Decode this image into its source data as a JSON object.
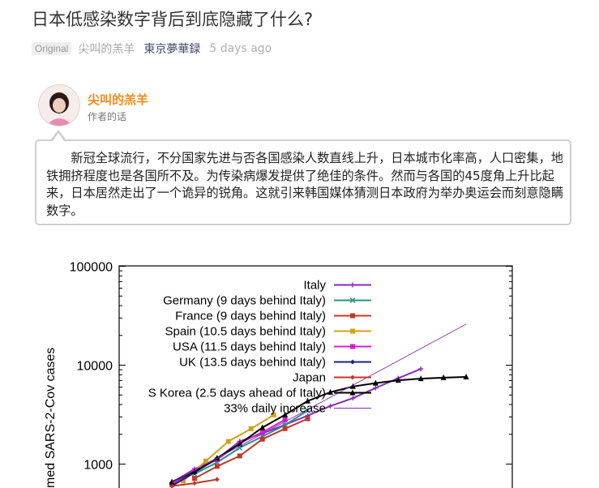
{
  "article": {
    "title": "日本低感染数字背后到底隐藏了什么?",
    "badge": "Original",
    "author": "尖叫的羔羊",
    "source": "東京夢華録",
    "time": "5 days ago"
  },
  "author_box": {
    "name": "尖叫的羔羊",
    "note_label": "作者的话",
    "note": "新冠全球流行，不分国家先进与否各国感染人数直线上升，日本城市化率高，人口密集，地铁拥挤程度也是各国所不及。为传染病爆发提供了绝佳的条件。然而与各国的45度角上升比起来，日本居然走出了一个诡异的锐角。这就引来韩国媒体猜测日本政府为举办奥运会而刻意隐瞒数字。"
  },
  "colors": {
    "author_name": "#f08c1c",
    "source_link": "#3d4b66"
  },
  "chart_data": {
    "type": "line",
    "ylabel": "med SARS-2-Cov cases",
    "yscale": "log",
    "yticks": [
      "100000",
      "10000",
      "1000"
    ],
    "ylim_visible": [
      600,
      100000
    ],
    "x_day_range": [
      0,
      14
    ],
    "legend_position": "top-right",
    "series": [
      {
        "name": "Italy",
        "color": "#8a2bb5",
        "marker": "plus",
        "points": [
          [
            0,
            650
          ],
          [
            1,
            890
          ],
          [
            2,
            1130
          ],
          [
            3,
            1700
          ],
          [
            4,
            2040
          ],
          [
            5,
            2500
          ],
          [
            6,
            3090
          ],
          [
            7,
            3860
          ],
          [
            8,
            4640
          ],
          [
            9,
            5880
          ],
          [
            10,
            7380
          ],
          [
            11,
            9170
          ]
        ]
      },
      {
        "name": "Germany (9 days behind Italy)",
        "color": "#2a8f8f",
        "marker": "x",
        "points": [
          [
            1,
            795
          ],
          [
            2,
            1040
          ],
          [
            3,
            1460
          ],
          [
            4,
            1900
          ],
          [
            5,
            2480
          ],
          [
            6,
            3480
          ]
        ]
      },
      {
        "name": "France (9 days behind Italy)",
        "color": "#c0392b",
        "marker": "square",
        "points": [
          [
            1,
            716
          ],
          [
            2,
            949
          ],
          [
            3,
            1209
          ],
          [
            4,
            1784
          ],
          [
            5,
            2281
          ],
          [
            6,
            2876
          ]
        ]
      },
      {
        "name": "Spain (10.5 days behind Italy)",
        "color": "#d4a017",
        "marker": "square",
        "points": [
          [
            0.5,
            674
          ],
          [
            1.5,
            1073
          ],
          [
            2.5,
            1695
          ],
          [
            3.5,
            2277
          ],
          [
            4.5,
            3146
          ]
        ]
      },
      {
        "name": "USA (11.5 days behind Italy)",
        "color": "#d21fd2",
        "marker": "square",
        "points": [
          [
            0,
            620
          ],
          [
            1,
            860
          ],
          [
            2,
            1110
          ],
          [
            3,
            1630
          ],
          [
            4,
            2100
          ],
          [
            5,
            2810
          ]
        ]
      },
      {
        "name": "UK (13.5 days behind Italy)",
        "color": "#1a237e",
        "marker": "diamond",
        "points": [
          [
            0,
            600
          ],
          [
            1,
            820
          ],
          [
            2,
            1140
          ]
        ]
      },
      {
        "name": "Japan",
        "color": "#c0392b",
        "marker": "diamond",
        "points": [
          [
            0,
            600
          ],
          [
            1,
            640
          ],
          [
            2,
            700
          ]
        ]
      },
      {
        "name": "S Korea (2.5 days ahead of Italy)",
        "color": "#000000",
        "marker": "triangle",
        "points": [
          [
            0,
            660
          ],
          [
            1,
            840
          ],
          [
            2,
            1150
          ],
          [
            3,
            1600
          ],
          [
            4,
            2340
          ],
          [
            5,
            3150
          ],
          [
            6,
            4340
          ],
          [
            7,
            5330
          ],
          [
            8,
            6090
          ],
          [
            9,
            6590
          ],
          [
            10,
            7040
          ],
          [
            11,
            7310
          ],
          [
            12,
            7480
          ],
          [
            13,
            7600
          ]
        ]
      },
      {
        "name": "33% daily increase",
        "color": "#8a2bb5",
        "marker": "none",
        "points": [
          [
            0,
            650
          ],
          [
            13,
            26000
          ]
        ]
      }
    ]
  }
}
